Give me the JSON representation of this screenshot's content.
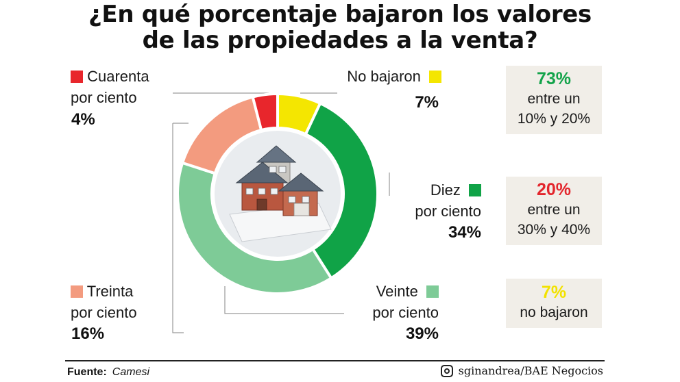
{
  "title": {
    "line1": "¿En qué porcentaje bajaron los valores",
    "line2": "de las propiedades a la venta?"
  },
  "chart_data": {
    "type": "pie",
    "variant": "donut",
    "slices": [
      {
        "key": "no",
        "label_line1": "No bajaron",
        "label_line2": "",
        "value": 7,
        "value_label": "7%",
        "color": "#f4e601"
      },
      {
        "key": "diez",
        "label_line1": "Diez",
        "label_line2": "por ciento",
        "value": 34,
        "value_label": "34%",
        "color": "#10a347"
      },
      {
        "key": "veinte",
        "label_line1": "Veinte",
        "label_line2": "por ciento",
        "value": 39,
        "value_label": "39%",
        "color": "#7ecb97"
      },
      {
        "key": "treinta",
        "label_line1": "Treinta",
        "label_line2": "por ciento",
        "value": 16,
        "value_label": "16%",
        "color": "#f39b7f"
      },
      {
        "key": "cuarenta",
        "label_line1": "Cuarenta",
        "label_line2": "por ciento",
        "value": 4,
        "value_label": "4%",
        "color": "#e8262c"
      }
    ]
  },
  "summary": [
    {
      "big": "73%",
      "line1": "entre un",
      "line2": "10% y 20%",
      "color": "#13a34a"
    },
    {
      "big": "20%",
      "line1": "entre un",
      "line2": "30% y 40%",
      "color": "#e3262d"
    },
    {
      "big": "7%",
      "line1": "no bajaron",
      "line2": "",
      "color": "#f2e200"
    }
  ],
  "footer": {
    "source_label": "Fuente:",
    "source_value": "Camesi",
    "credit": "sginandrea/BAE Negocios",
    "credit_icon": "instagram-icon"
  }
}
